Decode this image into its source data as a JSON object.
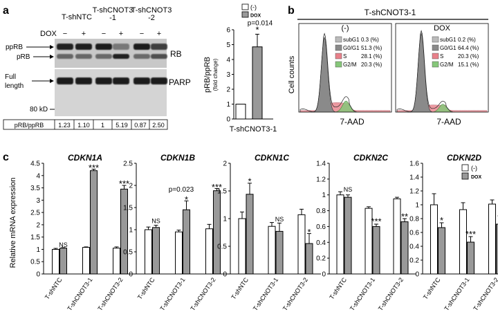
{
  "colors": {
    "white_bar": "#ffffff",
    "gray_bar": "#999999",
    "subG1": "#bbbbbb",
    "G0G1": "#8a8a8a",
    "S": "#e8808a",
    "G2M": "#86c77a",
    "blot_bg": "#cfcfcf",
    "band": "#1b1b1b"
  },
  "panel_a": {
    "label": "a",
    "groups": [
      "T-shNTC",
      "T-shCNOT3\n-1",
      "T-shCNOT3\n-2"
    ],
    "dox_label": "DOX",
    "dox_states": [
      "−",
      "+",
      "−",
      "+",
      "−",
      "+"
    ],
    "rb_labels": [
      "ppRB",
      "pRB"
    ],
    "rb_blot_label": "RB",
    "parp_left_label": "Full\nlength",
    "parp_blot_label": "PARP",
    "kd_label": "80 kD",
    "ratio_label": "pRB/ppRB",
    "ratios": [
      "1.23",
      "1.10",
      "1",
      "5.19",
      "0.87",
      "2.50"
    ]
  },
  "panel_a_chart": {
    "chart_data": {
      "type": "bar",
      "categories": [
        "(-)",
        "DOX"
      ],
      "values": [
        1,
        4.85
      ],
      "errors": [
        0,
        0.85
      ],
      "ylim": [
        0,
        6
      ],
      "yticks": [
        "0",
        "1",
        "2",
        "3",
        "4",
        "5",
        "6"
      ],
      "ylabel": "pRB/ppRB",
      "ylabel_sub": "(fold change)",
      "xlabel": "T-shCNOT3-1",
      "legend": [
        "(-)",
        "DOX"
      ],
      "legend_position": "top",
      "annotation": "p=0.014",
      "star": "*"
    }
  },
  "panel_b": {
    "label": "b",
    "title": "T-shCNOT3-1",
    "ylabel": "Cell counts",
    "xlabel": "7-AAD",
    "histograms": [
      {
        "title": "(-)",
        "legend": [
          {
            "name": "subG1",
            "value": "0.3 (%)"
          },
          {
            "name": "G0/G1",
            "value": "51.3 (%)"
          },
          {
            "name": "S",
            "value": "28.1 (%)"
          },
          {
            "name": "G2/M",
            "value": "20.3 (%)"
          }
        ]
      },
      {
        "title": "DOX",
        "legend": [
          {
            "name": "subG1",
            "value": "0.2 (%)"
          },
          {
            "name": "G0/G1",
            "value": "64.4 (%)"
          },
          {
            "name": "S",
            "value": "20.3 (%)"
          },
          {
            "name": "G2/M",
            "value": "15.1 (%)"
          }
        ]
      }
    ]
  },
  "panel_c": {
    "label": "c",
    "ylabel": "Relative mRNA expression",
    "legend": [
      "(-)",
      "DOX"
    ],
    "legend_position": "top-right",
    "chart_data": [
      {
        "type": "bar",
        "title": "CDKN1A",
        "categories": [
          "T-shNTC",
          "T-shCNOT3-1",
          "T-shCNOT3-2"
        ],
        "series": [
          {
            "name": "(-)",
            "values": [
              1.0,
              1.08,
              1.05
            ],
            "errors": [
              0.04,
              0.02,
              0.05
            ]
          },
          {
            "name": "DOX",
            "values": [
              1.05,
              4.2,
              3.45
            ],
            "errors": [
              0.02,
              0.06,
              0.15
            ]
          }
        ],
        "ylim": [
          0,
          4.5
        ],
        "yticks": [
          "0",
          "0.5",
          "1",
          "1.5",
          "2",
          "2.5",
          "3",
          "3.5",
          "4",
          "4.5"
        ],
        "annotations": [
          {
            "index": 0,
            "text": "NS",
            "y": 1.1
          },
          {
            "index": 1,
            "text": "***",
            "y": 4.3
          },
          {
            "index": 2,
            "text": "***",
            "y": 3.65
          }
        ]
      },
      {
        "type": "bar",
        "title": "CDKN1B",
        "categories": [
          "T-shNTC",
          "T-shCNOT3-1",
          "T-shCNOT3-2"
        ],
        "series": [
          {
            "name": "(-)",
            "values": [
              1.0,
              0.95,
              1.02
            ],
            "errors": [
              0.06,
              0.04,
              0.1
            ]
          },
          {
            "name": "DOX",
            "values": [
              1.05,
              1.45,
              1.88
            ],
            "errors": [
              0.05,
              0.2,
              0.05
            ]
          }
        ],
        "ylim": [
          0,
          2.5
        ],
        "yticks": [
          "0",
          "0.5",
          "1",
          "1.5",
          "2",
          "2.5"
        ],
        "annotations": [
          {
            "index": 0,
            "text": "NS",
            "y": 1.15
          },
          {
            "index": 1,
            "text": "*",
            "y": 1.67
          },
          {
            "index": 1,
            "text": "p=0.023",
            "y": 1.86
          },
          {
            "index": 2,
            "text": "***",
            "y": 1.95
          }
        ]
      },
      {
        "type": "bar",
        "title": "CDKN1C",
        "categories": [
          "T-shNTC",
          "T-shCNOT3-1",
          "T-shCNOT3-2"
        ],
        "series": [
          {
            "name": "(-)",
            "values": [
              1.0,
              0.86,
              1.07
            ],
            "errors": [
              0.12,
              0.07,
              0.1
            ]
          },
          {
            "name": "DOX",
            "values": [
              1.44,
              0.77,
              0.55
            ],
            "errors": [
              0.2,
              0.15,
              0.18
            ]
          }
        ],
        "ylim": [
          0,
          2
        ],
        "yticks": [
          "0",
          "0.5",
          "1",
          "1.5",
          "2"
        ],
        "annotations": [
          {
            "index": 0,
            "text": "*",
            "y": 1.67
          },
          {
            "index": 1,
            "text": "NS",
            "y": 0.95
          },
          {
            "index": 2,
            "text": "*",
            "y": 0.75
          }
        ]
      },
      {
        "type": "bar",
        "title": "CDKN2C",
        "categories": [
          "T-shNTC",
          "T-shCNOT3-1",
          "T-shCNOT3-2"
        ],
        "series": [
          {
            "name": "(-)",
            "values": [
              1.0,
              0.83,
              0.95
            ],
            "errors": [
              0.04,
              0.02,
              0.02
            ]
          },
          {
            "name": "DOX",
            "values": [
              0.97,
              0.6,
              0.66
            ],
            "errors": [
              0.03,
              0.03,
              0.04
            ]
          }
        ],
        "ylim": [
          0,
          1.4
        ],
        "yticks": [
          "0",
          "0.2",
          "0.4",
          "0.6",
          "0.8",
          "1",
          "1.2",
          "1.4"
        ],
        "annotations": [
          {
            "index": 0,
            "text": "NS",
            "y": 1.04
          },
          {
            "index": 1,
            "text": "***",
            "y": 0.66
          },
          {
            "index": 2,
            "text": "**",
            "y": 0.72
          }
        ]
      },
      {
        "type": "bar",
        "title": "CDKN2D",
        "categories": [
          "T-shNTC",
          "T-shCNOT3-1",
          "T-shCNOT3-2"
        ],
        "series": [
          {
            "name": "(-)",
            "values": [
              1.0,
              0.93,
              1.01
            ],
            "errors": [
              0.16,
              0.1,
              0.06
            ]
          },
          {
            "name": "DOX",
            "values": [
              0.67,
              0.46,
              0.72
            ],
            "errors": [
              0.07,
              0.08,
              0.12
            ]
          }
        ],
        "ylim": [
          0,
          1.6
        ],
        "yticks": [
          "0",
          "0.2",
          "0.4",
          "0.6",
          "0.8",
          "1",
          "1.2",
          "1.4",
          "1.6"
        ],
        "annotations": [
          {
            "index": 0,
            "text": "*",
            "y": 0.77
          },
          {
            "index": 1,
            "text": "***",
            "y": 0.57
          },
          {
            "index": 2,
            "text": "*",
            "y": 0.87
          }
        ]
      }
    ]
  }
}
